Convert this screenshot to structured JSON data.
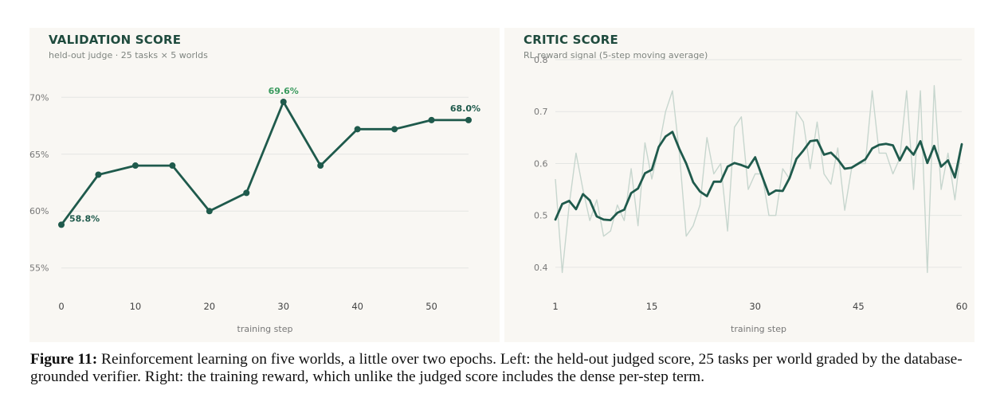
{
  "colors": {
    "line": "#1f5a4c",
    "highlight": "#3a9a5e",
    "raw": "#c7d6ce",
    "grid": "#e4e6e3",
    "axis_text": "#777777"
  },
  "chart_data": [
    {
      "type": "line",
      "title": "VALIDATION SCORE",
      "subtitle": "held-out judge · 25 tasks × 5 worlds",
      "xlabel": "training step",
      "x": [
        0,
        5,
        10,
        15,
        20,
        25,
        30,
        35,
        40,
        45,
        50,
        55
      ],
      "values": [
        58.8,
        63.2,
        64.0,
        64.0,
        60.0,
        61.6,
        69.6,
        64.0,
        67.2,
        67.2,
        68.0,
        68.0
      ],
      "xlim": [
        0,
        55
      ],
      "ylim": [
        54,
        71
      ],
      "xticks": [
        0,
        10,
        20,
        30,
        40,
        50
      ],
      "yticks": [
        55,
        60,
        65,
        70
      ],
      "ytick_labels": [
        "55%",
        "60%",
        "65%",
        "70%"
      ],
      "annotations": [
        {
          "x": 0,
          "y": 58.8,
          "text": "58.8%"
        },
        {
          "x": 30,
          "y": 69.6,
          "text": "69.6%"
        },
        {
          "x": 55,
          "y": 68.0,
          "text": "68.0%"
        }
      ],
      "grid": true
    },
    {
      "type": "line",
      "title": "CRITIC SCORE",
      "subtitle": "RL reward signal (5-step moving average)",
      "xlabel": "training step",
      "xlim": [
        1,
        60
      ],
      "ylim": [
        0.36,
        0.8
      ],
      "xticks": [
        1,
        15,
        30,
        45,
        60
      ],
      "yticks": [
        0.4,
        0.5,
        0.6,
        0.7,
        0.8
      ],
      "ytick_labels": [
        "0.4",
        "0.5",
        "0.6",
        "0.7",
        "0.8"
      ],
      "grid": true,
      "series": [
        {
          "style": "raw",
          "x": [
            1,
            2,
            3,
            4,
            5,
            6,
            7,
            8,
            9,
            10,
            11,
            12,
            13,
            14,
            15,
            16,
            17,
            18,
            19,
            20,
            21,
            22,
            23,
            24,
            25,
            26,
            27,
            28,
            29,
            30,
            31,
            32,
            33,
            34,
            35,
            36,
            37,
            38,
            39,
            40,
            41,
            42,
            43,
            44,
            45,
            46,
            47,
            48,
            49,
            50,
            51,
            52,
            53,
            54,
            55,
            56,
            57,
            58,
            59,
            60
          ],
          "values": [
            0.57,
            0.39,
            0.52,
            0.62,
            0.55,
            0.49,
            0.53,
            0.46,
            0.47,
            0.52,
            0.49,
            0.59,
            0.48,
            0.64,
            0.57,
            0.63,
            0.7,
            0.74,
            0.62,
            0.46,
            0.48,
            0.52,
            0.65,
            0.58,
            0.6,
            0.47,
            0.67,
            0.69,
            0.55,
            0.58,
            0.58,
            0.5,
            0.5,
            0.59,
            0.57,
            0.7,
            0.68,
            0.59,
            0.68,
            0.58,
            0.56,
            0.63,
            0.51,
            0.59,
            0.6,
            0.6,
            0.74,
            0.62,
            0.62,
            0.58,
            0.61,
            0.74,
            0.55,
            0.74,
            0.39,
            0.75,
            0.55,
            0.62,
            0.53,
            0.64
          ]
        },
        {
          "style": "smoothed",
          "x": [
            1,
            2,
            3,
            4,
            5,
            6,
            7,
            8,
            9,
            10,
            11,
            12,
            13,
            14,
            15,
            16,
            17,
            18,
            19,
            20,
            21,
            22,
            23,
            24,
            25,
            26,
            27,
            28,
            29,
            30,
            31,
            32,
            33,
            34,
            35,
            36,
            37,
            38,
            39,
            40,
            41,
            42,
            43,
            44,
            45,
            46,
            47,
            48,
            49,
            50,
            51,
            52,
            53,
            54,
            55,
            56,
            57,
            58,
            59,
            60
          ],
          "values": [
            0.492,
            0.522,
            0.528,
            0.512,
            0.541,
            0.529,
            0.498,
            0.492,
            0.491,
            0.505,
            0.511,
            0.543,
            0.552,
            0.581,
            0.588,
            0.632,
            0.652,
            0.661,
            0.628,
            0.6,
            0.564,
            0.546,
            0.537,
            0.565,
            0.565,
            0.594,
            0.601,
            0.597,
            0.592,
            0.612,
            0.576,
            0.54,
            0.548,
            0.547,
            0.572,
            0.609,
            0.625,
            0.643,
            0.645,
            0.617,
            0.621,
            0.608,
            0.59,
            0.592,
            0.6,
            0.608,
            0.629,
            0.636,
            0.638,
            0.635,
            0.606,
            0.632,
            0.617,
            0.643,
            0.601,
            0.634,
            0.594,
            0.606,
            0.573,
            0.637
          ]
        }
      ]
    }
  ],
  "caption": {
    "label": "Figure 11:",
    "text": " Reinforcement learning on five worlds, a little over two epochs. Left: the held-out judged score, 25 tasks per world graded by the database-grounded verifier. Right: the training reward, which unlike the judged score includes the dense per-step term."
  }
}
